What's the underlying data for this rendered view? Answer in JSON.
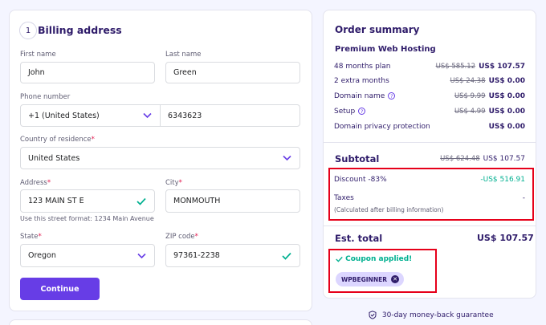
{
  "billing": {
    "step": "1",
    "title": "Billing address",
    "first_name_label": "First name",
    "first_name_value": "John",
    "last_name_label": "Last name",
    "last_name_value": "Green",
    "phone_label": "Phone number",
    "phone_country": "+1 (United States)",
    "phone_value": "6343623",
    "country_label": "Country of residence",
    "country_value": "United States",
    "address_label": "Address",
    "address_value": "123 MAIN ST E",
    "address_hint": "Use this street format: 1234 Main Avenue",
    "city_label": "City",
    "city_value": "MONMOUTH",
    "state_label": "State",
    "state_value": "Oregon",
    "zip_label": "ZIP code",
    "zip_value": "97361-2238",
    "continue_label": "Continue",
    "required_mark": "*"
  },
  "summary": {
    "title": "Order summary",
    "product": "Premium Web Hosting",
    "items": [
      {
        "name": "48 months plan",
        "old": "US$ 585.12",
        "price": "US$ 107.57"
      },
      {
        "name": "2 extra months",
        "old": "US$ 24.38",
        "price": "US$ 0.00"
      },
      {
        "name": "Domain name",
        "old": "US$ 9.99",
        "price": "US$ 0.00"
      },
      {
        "name": "Setup",
        "old": "US$ 4.99",
        "price": "US$ 0.00"
      },
      {
        "name": "Domain privacy protection",
        "old": "",
        "price": "US$ 0.00"
      }
    ],
    "info_glyph": "?",
    "subtotal_label": "Subtotal",
    "subtotal_old": "US$ 624.48",
    "subtotal_value": "US$ 107.57",
    "discount_label": "Discount -83%",
    "discount_value": "-US$ 516.91",
    "taxes_label": "Taxes",
    "taxes_value": "-",
    "taxes_note": "(Calculated after billing information)",
    "total_label": "Est. total",
    "total_value": "US$ 107.57",
    "coupon_status": "Coupon applied!",
    "coupon_code": "WPBEGINNER",
    "guarantee": "30-day money-back guarantee"
  },
  "colors": {
    "accent": "#673de6",
    "success": "#00b090",
    "highlight": "#e6001a",
    "text": "#2f1c6a"
  }
}
